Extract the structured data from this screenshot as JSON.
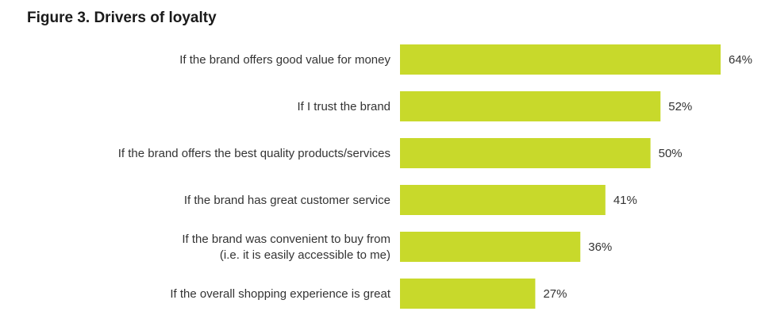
{
  "title": "Figure 3. Drivers of loyalty",
  "chart_data": {
    "type": "bar",
    "orientation": "horizontal",
    "title": "Figure 3. Drivers of loyalty",
    "xlabel": "",
    "ylabel": "",
    "categories": [
      [
        "If the brand offers good value for money"
      ],
      [
        "If I trust the brand"
      ],
      [
        "If the brand offers the best quality products/services"
      ],
      [
        "If the brand has great customer service"
      ],
      [
        "If the brand was convenient to buy from",
        "(i.e. it is easily accessible to me)"
      ],
      [
        "If the overall shopping experience is great"
      ]
    ],
    "values": [
      64,
      52,
      50,
      41,
      36,
      27
    ],
    "value_labels": [
      "64%",
      "52%",
      "50%",
      "41%",
      "36%",
      "27%"
    ],
    "xlim": [
      0,
      64
    ],
    "grid": false,
    "legend": "none",
    "bar_color": "#c8d92b"
  }
}
